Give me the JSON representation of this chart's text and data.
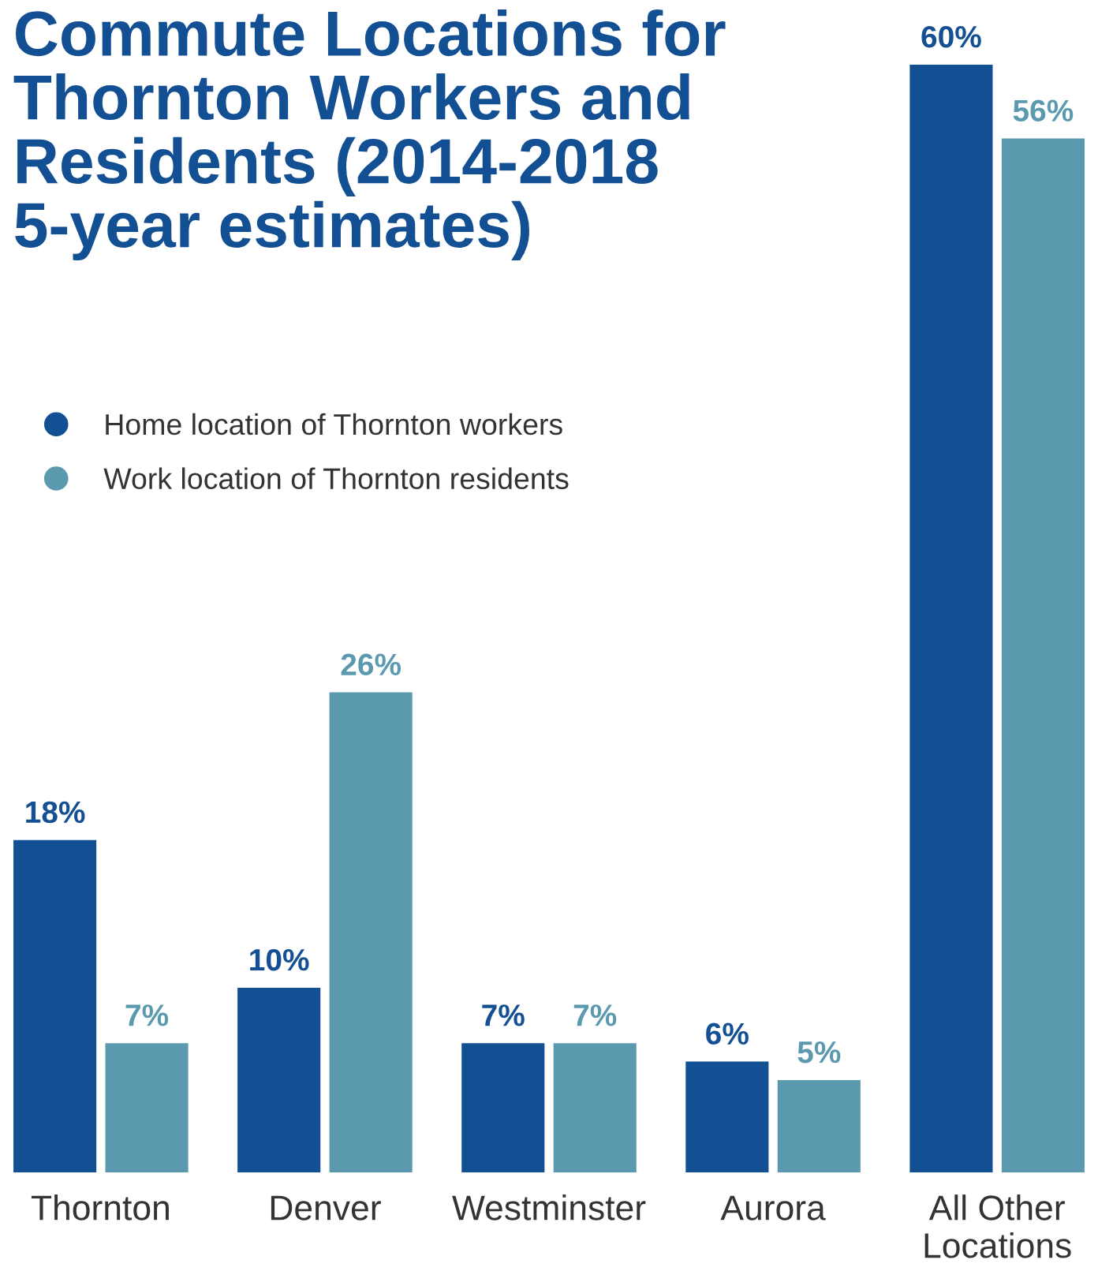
{
  "chart_data": {
    "type": "bar",
    "title": "Commute Locations for Thornton Workers and Residents (2014-2018 5-year estimates)",
    "categories": [
      "Thornton",
      "Denver",
      "Westminster",
      "Aurora",
      "All Other Locations"
    ],
    "series": [
      {
        "name": "Home location of Thornton workers",
        "color": "#134f93",
        "values": [
          18,
          10,
          7,
          6,
          60
        ],
        "value_labels": [
          "18%",
          "10%",
          "7%",
          "6%",
          "60%"
        ]
      },
      {
        "name": "Work location of Thornton residents",
        "color": "#5b9aae",
        "values": [
          7,
          26,
          7,
          5,
          56
        ],
        "value_labels": [
          "7%",
          "26%",
          "7%",
          "5%",
          "56%"
        ]
      }
    ],
    "legend": "top left"
  }
}
